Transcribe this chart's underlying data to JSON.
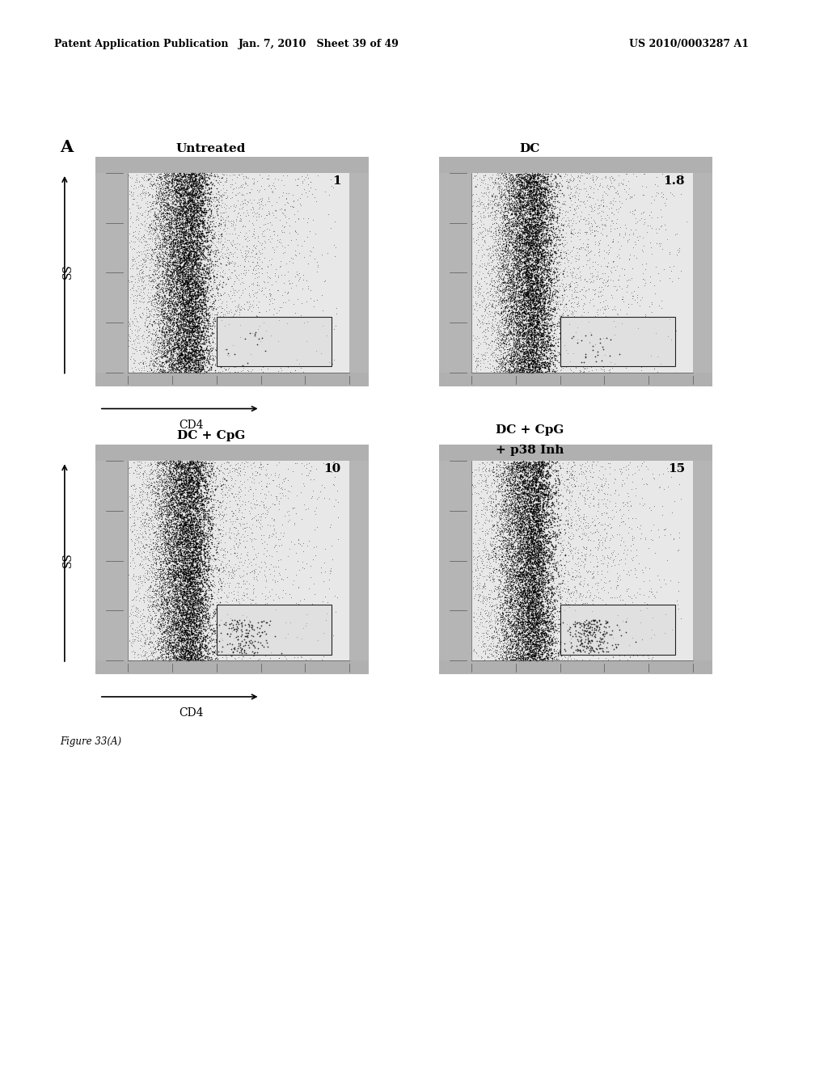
{
  "page_header_left": "Patent Application Publication",
  "page_header_center": "Jan. 7, 2010   Sheet 39 of 49",
  "page_header_right": "US 2010/0003287 A1",
  "panel_label": "A",
  "panel_titles": [
    "Untreated",
    "DC",
    "DC + CpG",
    "DC + CpG\n+ p38 Inh"
  ],
  "panel_values": [
    "1",
    "1.8",
    "10",
    "15"
  ],
  "xlabel": "CD4",
  "ylabel": "SS",
  "figure_caption": "Figure 33(A)",
  "bg_color": "#ffffff",
  "outer_border_color": "#777777",
  "inner_bg_color": "#c8c8c8",
  "plot_area_bg": "#d4d4d4",
  "white_area_bg": "#f0f0f0",
  "left_strip_bg": "#b8b8b8",
  "bottom_strip_bg": "#b0b0b0",
  "dark_band_color": "#080808",
  "scatter_color": "#303030",
  "gate_box_color": "#222222"
}
